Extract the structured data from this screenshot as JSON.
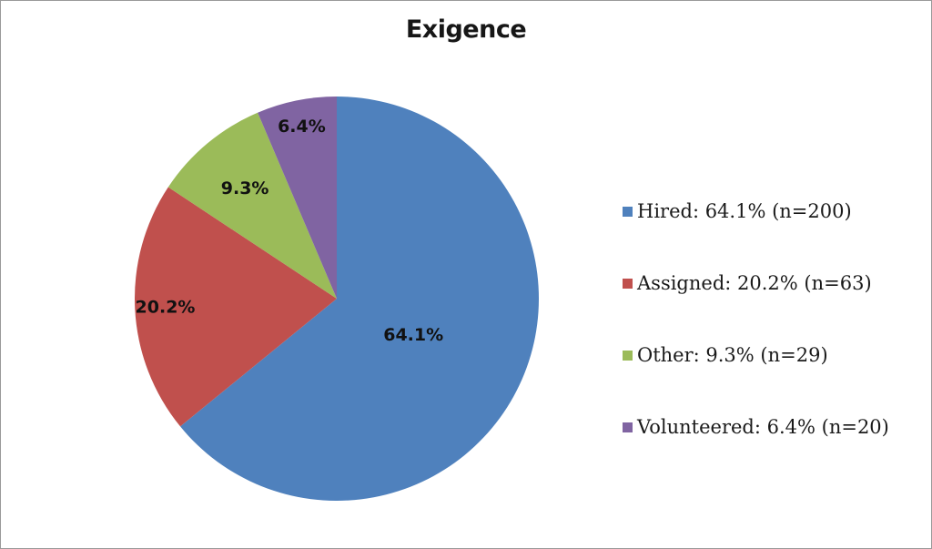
{
  "chart_data": {
    "type": "pie",
    "title": "Exigence",
    "categories": [
      "Hired",
      "Assigned",
      "Other",
      "Volunteered"
    ],
    "values": [
      64.1,
      20.2,
      9.3,
      6.4
    ],
    "counts": [
      200,
      63,
      29,
      20
    ],
    "start_angle_deg": 0,
    "direction": "clockwise",
    "legend_position": "right",
    "slices": [
      {
        "category": "Hired",
        "pct": 64.1,
        "n": 200,
        "color": "#4f81bd",
        "slice_label": "64.1%",
        "legend_text": "Hired: 64.1% (n=200)",
        "label_r_frac": 0.42
      },
      {
        "category": "Assigned",
        "pct": 20.2,
        "n": 63,
        "color": "#c0504d",
        "slice_label": "20.2%",
        "legend_text": "Assigned: 20.2% (n=63)",
        "label_r_frac": 0.85
      },
      {
        "category": "Other",
        "pct": 9.3,
        "n": 29,
        "color": "#9bbb59",
        "slice_label": "9.3%",
        "legend_text": "Other: 9.3% (n=29)",
        "label_r_frac": 0.71
      },
      {
        "category": "Volunteered",
        "pct": 6.4,
        "n": 20,
        "color": "#8064a2",
        "slice_label": "6.4%",
        "legend_text": "Volunteered: 6.4% (n=20)",
        "label_r_frac": 0.87
      }
    ]
  }
}
